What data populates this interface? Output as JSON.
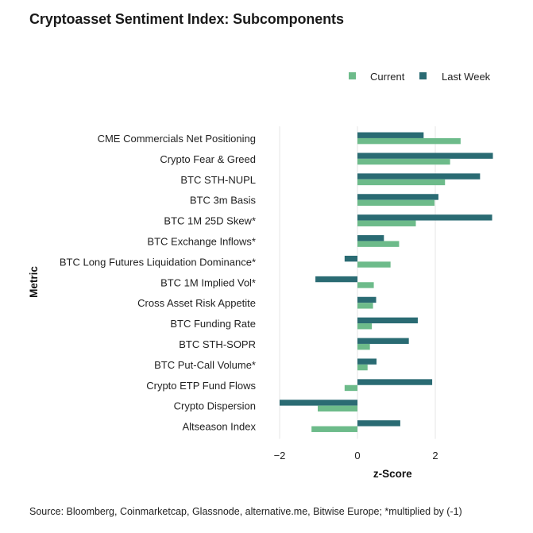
{
  "chart_data": {
    "type": "bar",
    "orientation": "horizontal",
    "title": "Cryptoasset Sentiment Index: Subcomponents",
    "xlabel": "z-Score",
    "ylabel": "Metric",
    "xlim": [
      -2.05,
      3.45
    ],
    "xticks": [
      -2,
      0,
      2
    ],
    "grid": true,
    "legend_position": "top-right",
    "categories": [
      "CME Commercials Net Positioning",
      "Crypto Fear & Greed",
      "BTC STH-NUPL",
      "BTC 3m Basis",
      "BTC 1M 25D Skew*",
      "BTC Exchange Inflows*",
      "BTC Long Futures Liquidation Dominance*",
      "BTC 1M Implied Vol*",
      "Cross Asset Risk Appetite",
      "BTC Funding Rate",
      "BTC STH-SOPR",
      "BTC Put-Call Volume*",
      "Crypto ETP Fund Flows",
      "Crypto Dispersion",
      "Altseason Index"
    ],
    "series": [
      {
        "name": "Current",
        "color": "#6dbb8a",
        "values": [
          2.65,
          2.38,
          2.25,
          1.98,
          1.5,
          1.07,
          0.85,
          0.42,
          0.4,
          0.37,
          0.32,
          0.26,
          -0.33,
          -1.02,
          -1.18
        ]
      },
      {
        "name": "Last Week",
        "color": "#2a6b73",
        "values": [
          1.7,
          3.48,
          3.15,
          2.08,
          3.46,
          0.68,
          -0.33,
          -1.08,
          0.48,
          1.55,
          1.32,
          0.49,
          1.92,
          -2.0,
          1.1
        ]
      }
    ]
  },
  "source": "Source: Bloomberg, Coinmarketcap, Glassnode, alternative.me, Bitwise Europe; *multiplied by (-1)"
}
